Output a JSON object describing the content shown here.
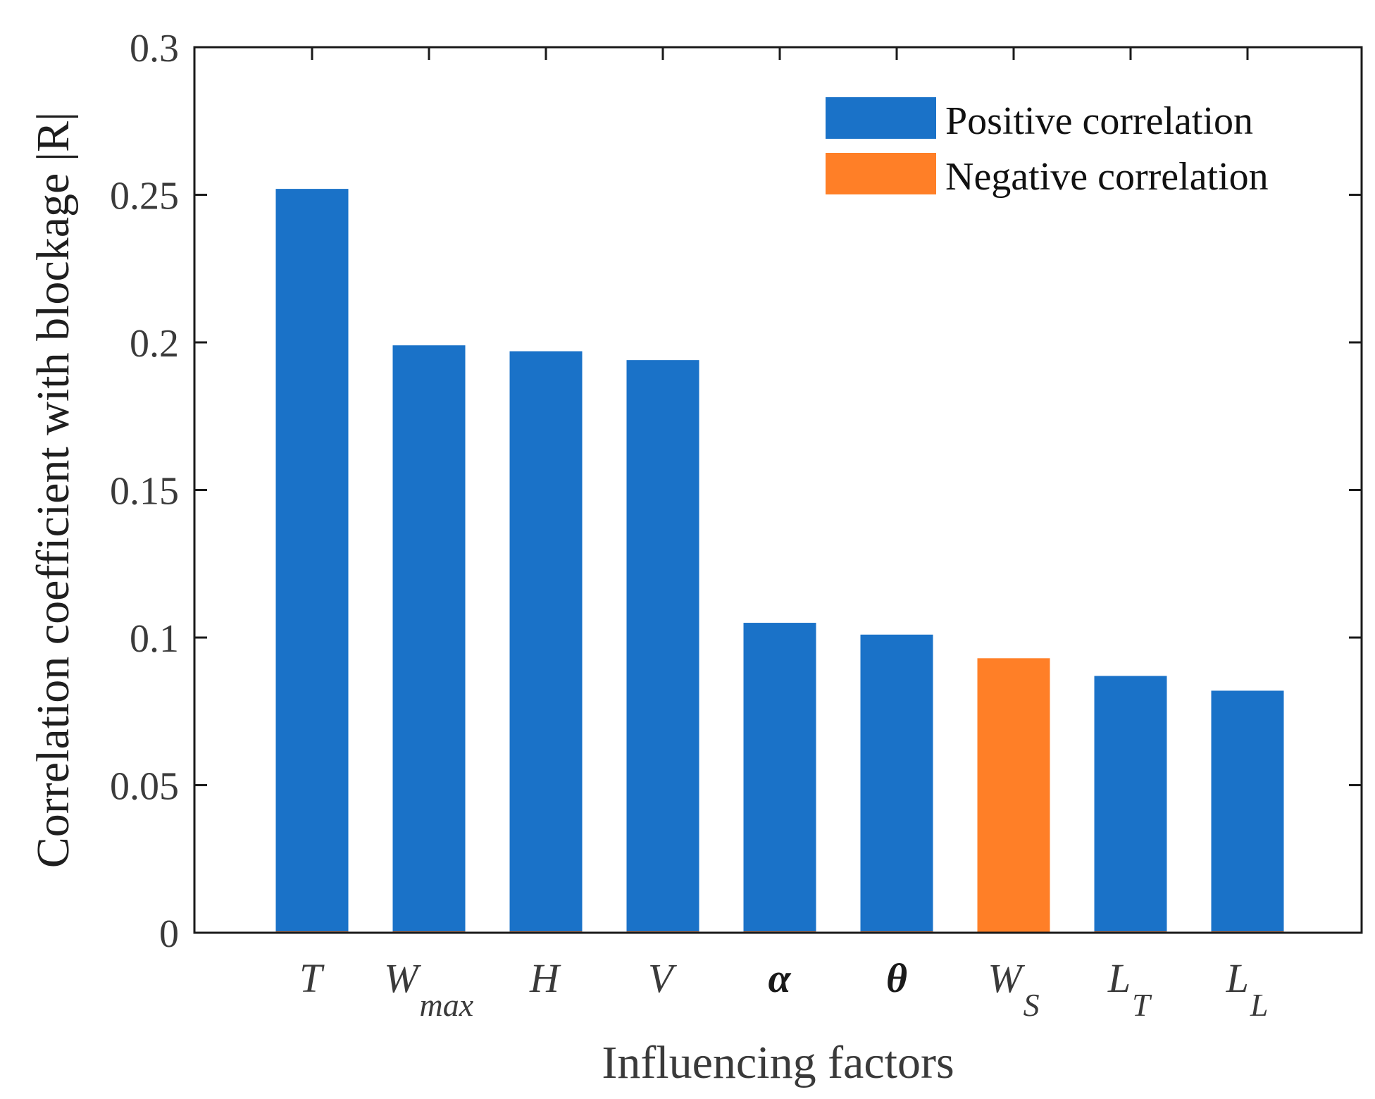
{
  "chart_data": {
    "type": "bar",
    "title": "",
    "xlabel": "Influencing factors",
    "ylabel": "Correlation coefficient with blockage |R|",
    "ylim": [
      0,
      0.3
    ],
    "yticks": [
      0,
      0.05,
      0.1,
      0.15,
      0.2,
      0.25,
      0.3
    ],
    "ytick_labels": [
      "0",
      "0.05",
      "0.1",
      "0.15",
      "0.2",
      "0.25",
      "0.3"
    ],
    "categories": [
      {
        "base": "T",
        "sub": ""
      },
      {
        "base": "W",
        "sub": "max"
      },
      {
        "base": "H",
        "sub": ""
      },
      {
        "base": "V",
        "sub": ""
      },
      {
        "base": "α",
        "sub": ""
      },
      {
        "base": "θ",
        "sub": ""
      },
      {
        "base": "W",
        "sub": "S"
      },
      {
        "base": "L",
        "sub": "T"
      },
      {
        "base": "L",
        "sub": "L"
      }
    ],
    "series": [
      {
        "name": "Positive correlation",
        "color": "#1a72c8",
        "values": [
          0.252,
          0.199,
          0.197,
          0.194,
          0.105,
          0.101,
          0,
          0.087,
          0.082
        ]
      },
      {
        "name": "Negative correlation",
        "color": "#ff7f27",
        "values": [
          0,
          0,
          0,
          0,
          0,
          0,
          0.093,
          0,
          0
        ]
      }
    ],
    "legend": {
      "position": "top-right",
      "entries": [
        "Positive correlation",
        "Negative correlation"
      ]
    },
    "grid": false
  }
}
